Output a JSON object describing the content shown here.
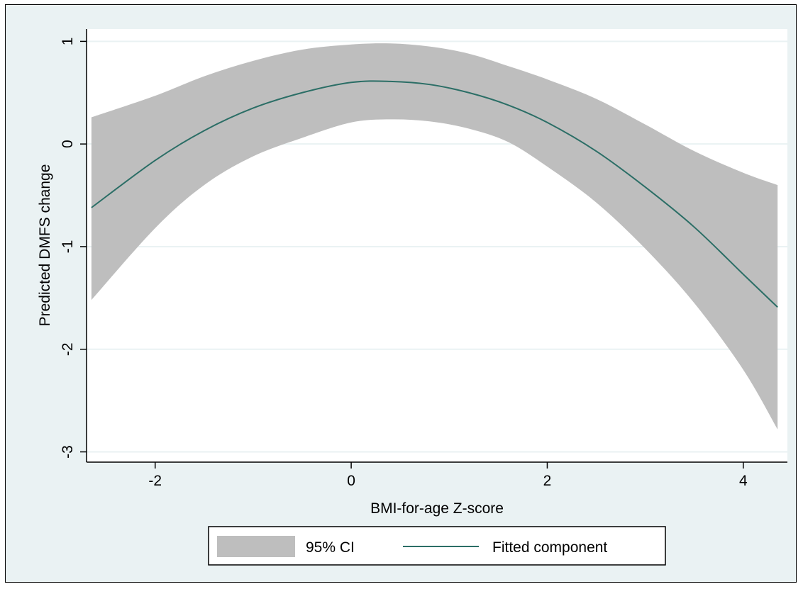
{
  "chart_data": {
    "type": "line",
    "xlabel": "BMI-for-age Z-score",
    "ylabel": "Predicted DMFS change",
    "xlim": [
      -2.7,
      4.45
    ],
    "ylim": [
      -3.1,
      1.12
    ],
    "xticks": [
      -2,
      0,
      2,
      4
    ],
    "yticks": [
      1,
      0,
      -1,
      -2,
      -3
    ],
    "grid": "horizontal",
    "legend_position": "bottom",
    "series": [
      {
        "name": "95% CI",
        "kind": "band",
        "color": "#bebebe",
        "x": [
          -2.65,
          -2.0,
          -1.5,
          -1.0,
          -0.5,
          0.0,
          0.4,
          0.8,
          1.2,
          1.6,
          2.0,
          2.5,
          3.0,
          3.5,
          4.0,
          4.35
        ],
        "lower": [
          -1.52,
          -0.82,
          -0.4,
          -0.12,
          0.06,
          0.21,
          0.24,
          0.22,
          0.15,
          0.02,
          -0.22,
          -0.57,
          -1.02,
          -1.55,
          -2.2,
          -2.78
        ],
        "upper": [
          0.26,
          0.47,
          0.66,
          0.81,
          0.92,
          0.97,
          0.98,
          0.95,
          0.88,
          0.76,
          0.63,
          0.44,
          0.19,
          -0.07,
          -0.28,
          -0.4
        ]
      },
      {
        "name": "Fitted component",
        "kind": "line",
        "color": "#2b6e66",
        "x": [
          -2.65,
          -2.0,
          -1.5,
          -1.0,
          -0.5,
          0.0,
          0.4,
          0.8,
          1.2,
          1.6,
          2.0,
          2.5,
          3.0,
          3.5,
          4.0,
          4.35
        ],
        "y": [
          -0.62,
          -0.16,
          0.13,
          0.35,
          0.5,
          0.6,
          0.61,
          0.58,
          0.5,
          0.38,
          0.21,
          -0.07,
          -0.42,
          -0.81,
          -1.27,
          -1.59
        ]
      }
    ],
    "legend": [
      {
        "label": "95% CI",
        "kind": "band"
      },
      {
        "label": "Fitted component",
        "kind": "line"
      }
    ]
  }
}
